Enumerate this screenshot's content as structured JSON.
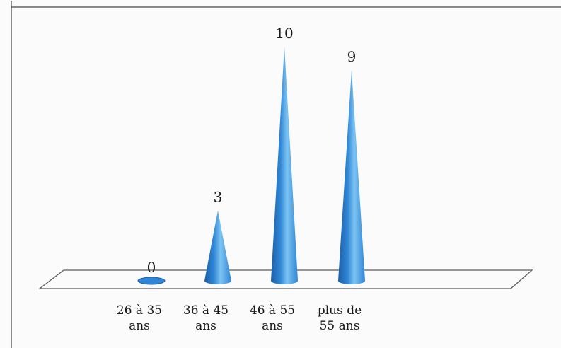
{
  "chart_data": {
    "type": "bar",
    "style": "3d-cone",
    "categories": [
      "26 à 35 ans",
      "36 à 45 ans",
      "46 à 55 ans",
      "plus de 55 ans"
    ],
    "category_lines": [
      [
        "26 à 35",
        "ans"
      ],
      [
        "36 à 45",
        "ans"
      ],
      [
        "46 à 55",
        "ans"
      ],
      [
        "plus de",
        "55 ans"
      ]
    ],
    "values": [
      0,
      3,
      10,
      9
    ],
    "data_labels": [
      "0",
      "3",
      "10",
      "9"
    ],
    "ylim": [
      0,
      10
    ],
    "title": "",
    "xlabel": "",
    "ylabel": "",
    "grid": false,
    "legend": "none",
    "colors": {
      "cone_main": "#2f86d6",
      "cone_light": "#7cc4f2",
      "cone_dark": "#1d5fa6",
      "floor_stroke": "#5a5a5a",
      "frame_stroke": "#444444"
    }
  }
}
